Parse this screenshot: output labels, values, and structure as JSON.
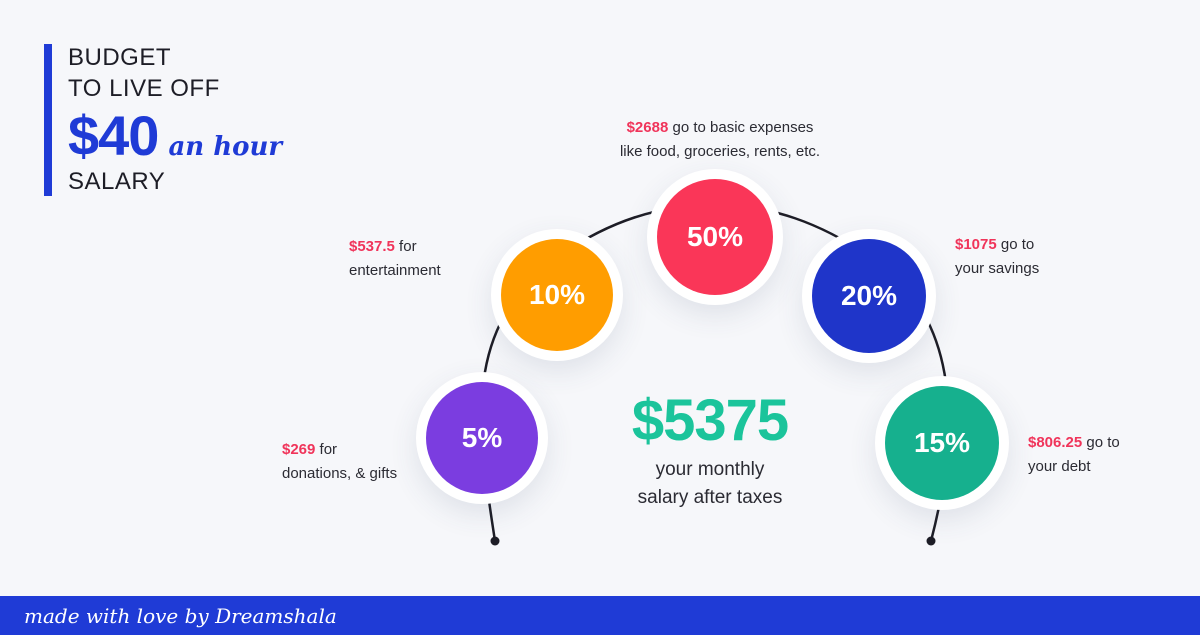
{
  "title": {
    "line1": "BUDGET",
    "line2": "TO LIVE OFF",
    "amount": "$40",
    "per": "an hour",
    "line4": "SALARY"
  },
  "center": {
    "total": "$5375",
    "line1": "your monthly",
    "line2": "salary after taxes"
  },
  "segments": [
    {
      "percent": "5%",
      "amount": "$269",
      "text_after": " for",
      "text_line2": "donations, & gifts",
      "color": "#7b3de0"
    },
    {
      "percent": "10%",
      "amount": "$537.5",
      "text_after": " for",
      "text_line2": "entertainment",
      "color": "#ff9d00"
    },
    {
      "percent": "50%",
      "amount": "$2688",
      "text_after": " go to basic expenses",
      "text_line2": "like food, groceries, rents, etc.",
      "color": "#fa3658"
    },
    {
      "percent": "20%",
      "amount": "$1075",
      "text_after": " go to",
      "text_line2": "your savings",
      "color": "#1f35c9"
    },
    {
      "percent": "15%",
      "amount": "$806.25",
      "text_after": " go to",
      "text_line2": "your debt",
      "color": "#16b08e"
    }
  ],
  "footer": {
    "credit": "made with love by Dreamshala"
  }
}
